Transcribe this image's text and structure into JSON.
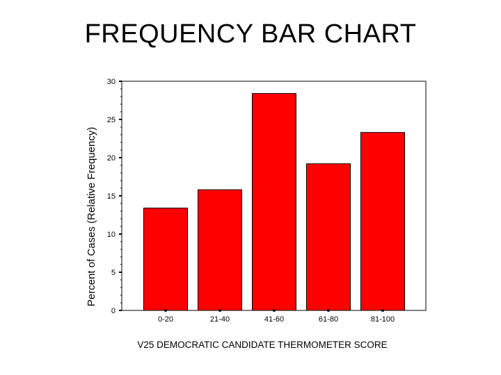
{
  "slide": {
    "title": "FREQUENCY BAR CHART"
  },
  "chart_data": {
    "type": "bar",
    "categories": [
      "0-20",
      "21-40",
      "41-60",
      "61-80",
      "81-100"
    ],
    "values": [
      13.4,
      15.8,
      28.4,
      19.2,
      23.3
    ],
    "xlabel": "V25 DEMOCRATIC CANDIDATE THERMOMETER SCORE",
    "ylabel": "Percent of Cases (Relative Frequency)",
    "ylim": [
      0,
      30
    ],
    "yticks": [
      0,
      5,
      10,
      15,
      20,
      25,
      30
    ],
    "grid": false,
    "legend": "none",
    "bar_color": "#ff0000",
    "bar_edge_color": "#000000"
  }
}
